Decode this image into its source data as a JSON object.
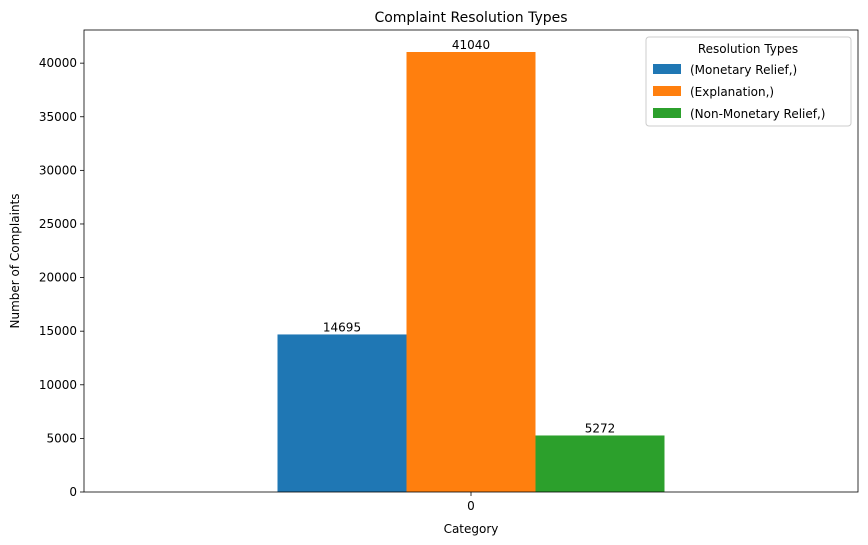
{
  "chart_data": {
    "type": "bar",
    "title": "Complaint Resolution Types",
    "xlabel": "Category",
    "ylabel": "Number of Complaints",
    "categories": [
      "0"
    ],
    "series": [
      {
        "name": "(Monetary Relief,)",
        "values": [
          14695
        ],
        "color": "#1f77b4"
      },
      {
        "name": "(Explanation,)",
        "values": [
          41040
        ],
        "color": "#ff7f0e"
      },
      {
        "name": "(Non-Monetary Relief,)",
        "values": [
          5272
        ],
        "color": "#2ca02c"
      }
    ],
    "data_labels": [
      "14695",
      "41040",
      "5272"
    ],
    "ylim": [
      0,
      43092
    ],
    "yticks": [
      0,
      5000,
      10000,
      15000,
      20000,
      25000,
      30000,
      35000,
      40000
    ],
    "ytick_labels": [
      "0",
      "5000",
      "10000",
      "15000",
      "20000",
      "25000",
      "30000",
      "35000",
      "40000"
    ],
    "legend": {
      "title": "Resolution Types",
      "position": "top-right"
    },
    "grid": false
  }
}
